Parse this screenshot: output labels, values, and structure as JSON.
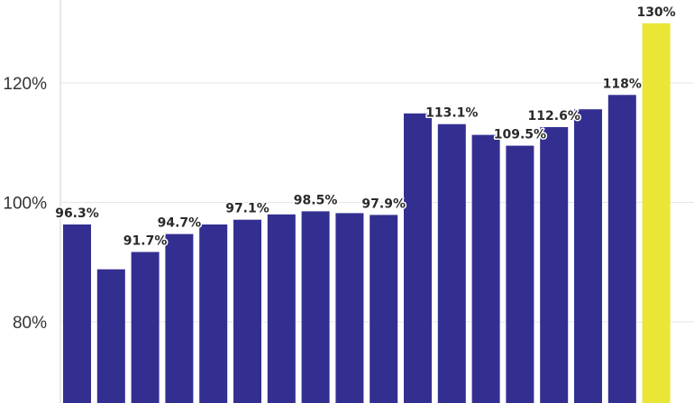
{
  "chart_data": {
    "type": "bar",
    "title": "",
    "xlabel": "",
    "ylabel": "",
    "ylim": [
      66.5,
      132
    ],
    "grid": true,
    "y_ticks": [
      {
        "value": 80,
        "label": "80%"
      },
      {
        "value": 100,
        "label": "100%"
      },
      {
        "value": 120,
        "label": "120%"
      }
    ],
    "values": [
      96.3,
      88.8,
      91.7,
      94.7,
      96.3,
      97.1,
      98.0,
      98.5,
      98.2,
      97.9,
      114.9,
      113.1,
      111.3,
      109.5,
      112.6,
      115.6,
      118.0,
      130.0
    ],
    "data_labels": [
      "96.3%",
      "",
      "91.7%",
      "94.7%",
      "",
      "97.1%",
      "",
      "98.5%",
      "",
      "97.9%",
      "",
      "113.1%",
      "",
      "109.5%",
      "112.6%",
      "",
      "118%",
      "130%"
    ],
    "colors": {
      "bar": "#332f91",
      "highlight": "#e9e635"
    },
    "highlight_index": 17
  }
}
